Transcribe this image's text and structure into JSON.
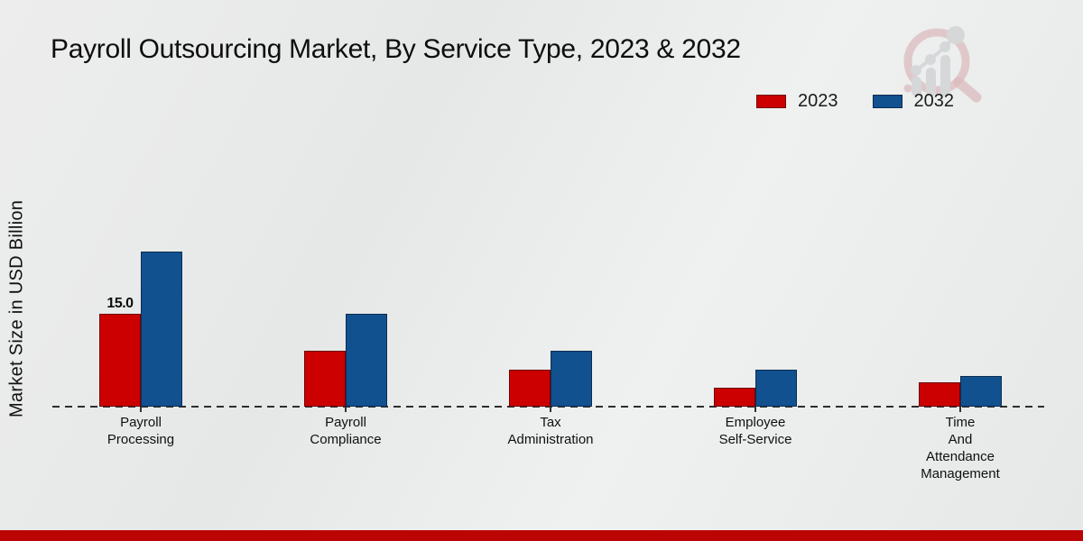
{
  "page": {
    "title": "Payroll Outsourcing Market, By Service Type, 2023 & 2032"
  },
  "axes": {
    "y_label": "Market Size in USD Billion"
  },
  "legend": {
    "items": [
      {
        "label": "2023",
        "color": "#cc0000"
      },
      {
        "label": "2032",
        "color": "#11518f"
      }
    ]
  },
  "colors": {
    "series_2023": "#cc0000",
    "series_2032": "#11518f",
    "footer_strip": "#ba0504",
    "baseline": "#2e2e2e"
  },
  "branding": {
    "watermark_icon": "magnifier-growth-bars-logo"
  },
  "chart_data": {
    "type": "bar",
    "title": "Payroll Outsourcing Market, By Service Type, 2023 & 2032",
    "xlabel": "",
    "ylabel": "Market Size in USD Billion",
    "categories": [
      "Payroll Processing",
      "Payroll Compliance",
      "Tax Administration",
      "Employee Self-Service",
      "Time And Attendance Management"
    ],
    "category_tick_lines": [
      [
        "Payroll",
        "Processing"
      ],
      [
        "Payroll",
        "Compliance"
      ],
      [
        "Tax",
        "Administration"
      ],
      [
        "Employee",
        "Self-Service"
      ],
      [
        "Time",
        "And",
        "Attendance",
        "Management"
      ]
    ],
    "series": [
      {
        "name": "2023",
        "color": "#cc0000",
        "values": [
          15.0,
          9.0,
          6.0,
          3.0,
          4.0
        ]
      },
      {
        "name": "2032",
        "color": "#11518f",
        "values": [
          25.0,
          15.0,
          9.0,
          6.0,
          5.0
        ]
      }
    ],
    "data_labels": [
      {
        "series_index": 0,
        "category_index": 0,
        "text": "15.0"
      }
    ],
    "ylim": [
      0,
      26.5
    ],
    "grid": false,
    "legend_position": "upper right",
    "baseline_style": "dashed"
  }
}
